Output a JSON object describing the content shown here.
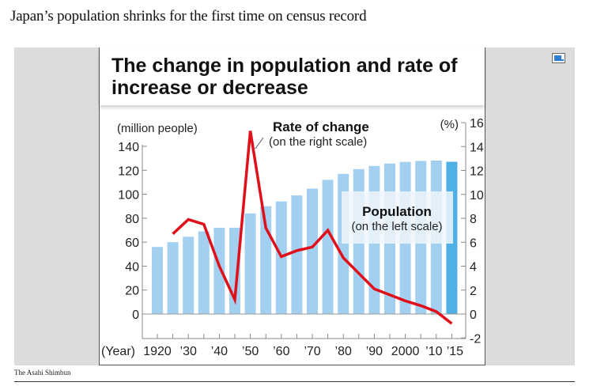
{
  "page": {
    "headline": "Japan’s population shrinks for the first time on census record",
    "source": "The Asahi Shimbun",
    "expand_icon": "expand-window-icon"
  },
  "chart_data": {
    "type": "bar",
    "title_lines": [
      "The change in population and rate of",
      "increase or decrease"
    ],
    "x": [
      1920,
      1925,
      1930,
      1935,
      1940,
      1945,
      1950,
      1955,
      1960,
      1965,
      1970,
      1975,
      1980,
      1985,
      1990,
      1995,
      2000,
      2005,
      2010,
      2015
    ],
    "x_tick_labels": [
      {
        "year": 1920,
        "label": "1920"
      },
      {
        "year": 1930,
        "label": "’30"
      },
      {
        "year": 1940,
        "label": "’40"
      },
      {
        "year": 1950,
        "label": "’50"
      },
      {
        "year": 1960,
        "label": "’60"
      },
      {
        "year": 1970,
        "label": "’70"
      },
      {
        "year": 1980,
        "label": "’80"
      },
      {
        "year": 1990,
        "label": "’90"
      },
      {
        "year": 2000,
        "label": "2000"
      },
      {
        "year": 2010,
        "label": "’10"
      },
      {
        "year": 2015,
        "label": "’15"
      }
    ],
    "xlabel": "(Year)",
    "left_axis": {
      "label": "(million people)",
      "ticks": [
        0,
        20,
        40,
        60,
        80,
        100,
        120,
        140
      ],
      "range": [
        -20,
        140
      ]
    },
    "right_axis": {
      "label": "(%)",
      "ticks": [
        -2,
        0,
        2,
        4,
        6,
        8,
        10,
        12,
        14,
        16
      ],
      "range": [
        -2,
        16
      ]
    },
    "series": [
      {
        "name": "Population",
        "sublabel": "(on the left scale)",
        "type": "bar",
        "axis": "left",
        "color": "#a3d0f0",
        "highlight_color": "#4fb0e6",
        "highlight_year": 2015,
        "values": [
          56,
          60,
          64.5,
          69,
          72,
          72,
          84,
          90,
          94,
          99,
          104.7,
          112,
          117,
          121,
          123.6,
          125.6,
          127,
          127.8,
          128.1,
          127.1
        ]
      },
      {
        "name": "Rate of change",
        "sublabel": "(on the right scale)",
        "type": "line",
        "axis": "right",
        "color": "#e0101a",
        "x": [
          1925,
          1930,
          1935,
          1940,
          1945,
          1950,
          1955,
          1960,
          1965,
          1970,
          1975,
          1980,
          1985,
          1990,
          1995,
          2000,
          2005,
          2010,
          2015
        ],
        "values": [
          6.7,
          7.9,
          7.5,
          4.0,
          1.2,
          15.3,
          7.2,
          4.8,
          5.3,
          5.6,
          7.0,
          4.7,
          3.4,
          2.1,
          1.6,
          1.1,
          0.7,
          0.2,
          -0.8
        ]
      }
    ],
    "grid": false,
    "legend_placement": "inline-annotations"
  }
}
